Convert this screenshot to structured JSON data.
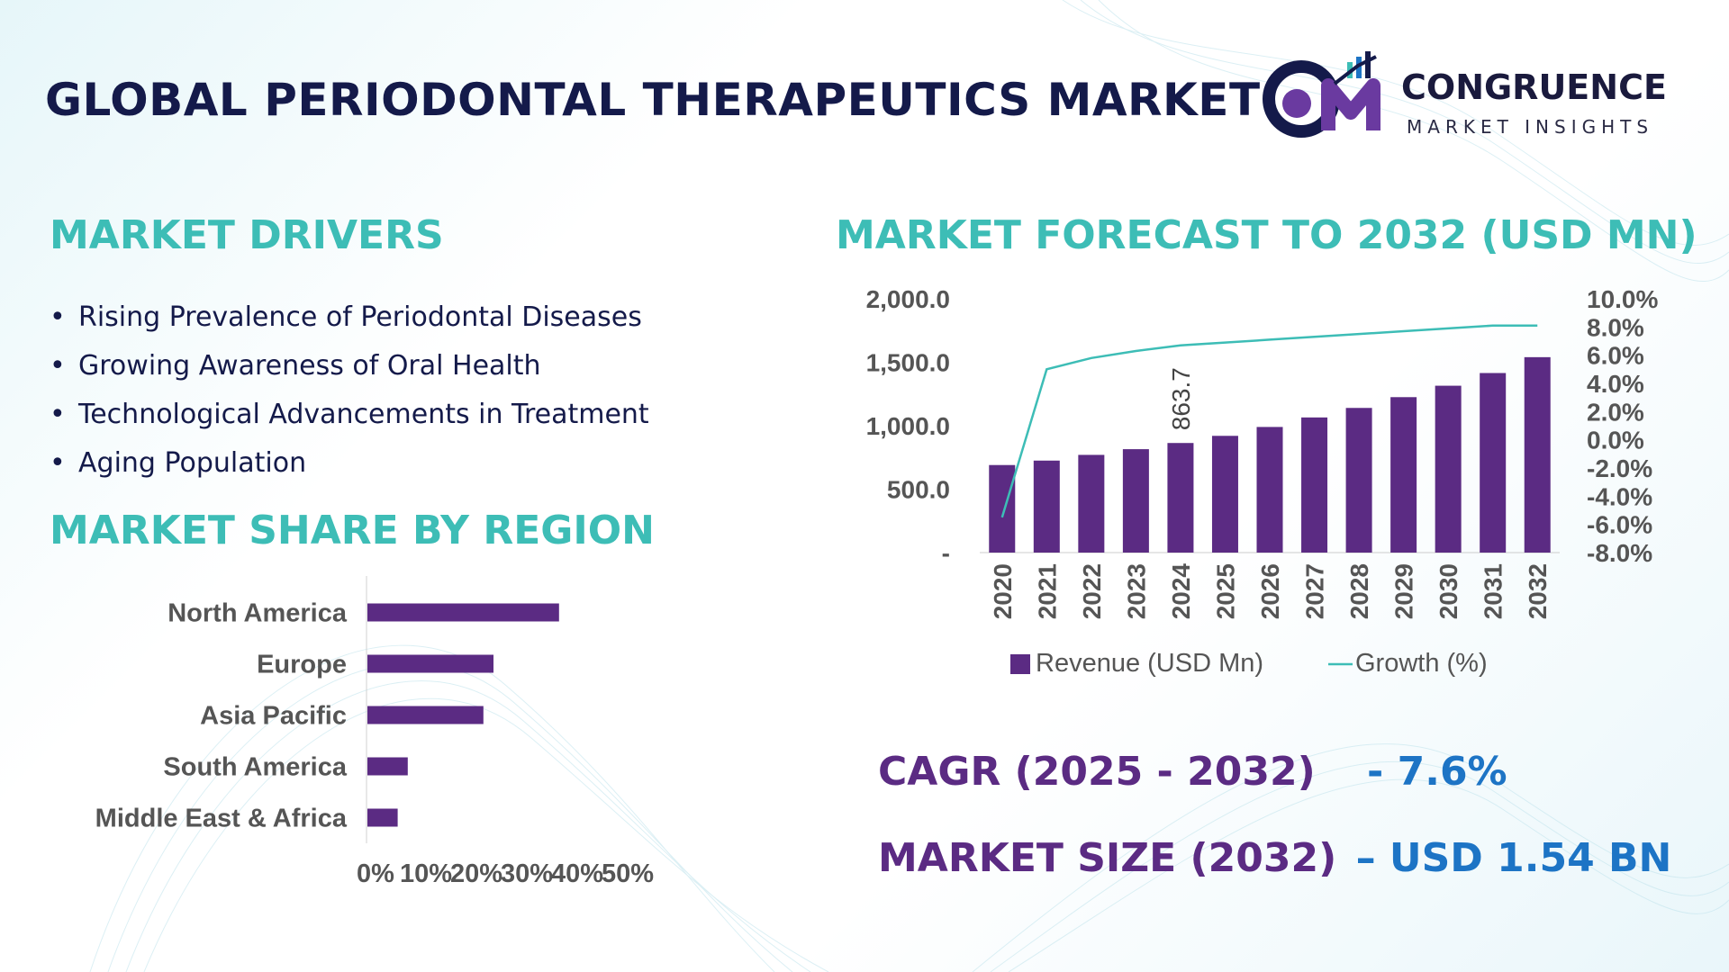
{
  "header": {
    "title": "GLOBAL PERIODONTAL THERAPEUTICS MARKET",
    "logo": {
      "mark": "CM",
      "word": "CONGRUENCE",
      "tagline": "MARKET INSIGHTS"
    }
  },
  "drivers": {
    "heading": "MARKET DRIVERS",
    "items": [
      "Rising Prevalence of Periodontal Diseases",
      "Growing Awareness of Oral Health",
      "Technological Advancements in Treatment",
      "Aging Population"
    ]
  },
  "region": {
    "heading": "MARKET SHARE BY REGION"
  },
  "forecast": {
    "heading": "MARKET FORECAST TO 2032 (USD MN)"
  },
  "kpis": {
    "cagr_label": "CAGR (2025 - 2032)",
    "cagr_value": "- 7.6%",
    "size_label": "MARKET SIZE (2032)",
    "size_value": "– USD 1.54 BN"
  },
  "colors": {
    "bar": "#5b2b83",
    "growth_line": "#3dbdb6",
    "heading": "#3dbdb6",
    "title": "#141a4a",
    "kpi_value": "#1d74c5"
  },
  "chart_data": [
    {
      "type": "bar",
      "orientation": "horizontal",
      "categories": [
        "North America",
        "Europe",
        "Asia Pacific",
        "South America",
        "Middle East & Africa"
      ],
      "values": [
        38,
        25,
        23,
        8,
        6
      ],
      "x_ticks": [
        "0%",
        "10%",
        "20%",
        "30%",
        "40%",
        "50%"
      ],
      "xlim": [
        0,
        50
      ]
    },
    {
      "type": "bar",
      "categories": [
        "2020",
        "2021",
        "2022",
        "2023",
        "2024",
        "2025",
        "2026",
        "2027",
        "2028",
        "2029",
        "2030",
        "2031",
        "2032"
      ],
      "series": [
        {
          "name": "Revenue (USD Mn)",
          "type": "bar",
          "axis": "left",
          "values": [
            690,
            725,
            770,
            815,
            863.7,
            920,
            990,
            1065,
            1140,
            1225,
            1315,
            1415,
            1540
          ]
        },
        {
          "name": "Growth (%)",
          "type": "line",
          "axis": "right",
          "values": [
            -5.5,
            5.0,
            5.8,
            6.3,
            6.7,
            6.9,
            7.1,
            7.3,
            7.5,
            7.7,
            7.9,
            8.1,
            8.1
          ]
        }
      ],
      "data_labels": [
        {
          "index": 4,
          "text": "863.7"
        }
      ],
      "y_ticks": [
        "-",
        "500.0",
        "1,000.0",
        "1,500.0",
        "2,000.0"
      ],
      "ylim": [
        0,
        2000
      ],
      "y2_ticks": [
        "-8.0%",
        "-6.0%",
        "-4.0%",
        "-2.0%",
        "0.0%",
        "2.0%",
        "4.0%",
        "6.0%",
        "8.0%",
        "10.0%"
      ],
      "y2lim": [
        -8,
        10
      ],
      "legend": "bottom"
    }
  ]
}
